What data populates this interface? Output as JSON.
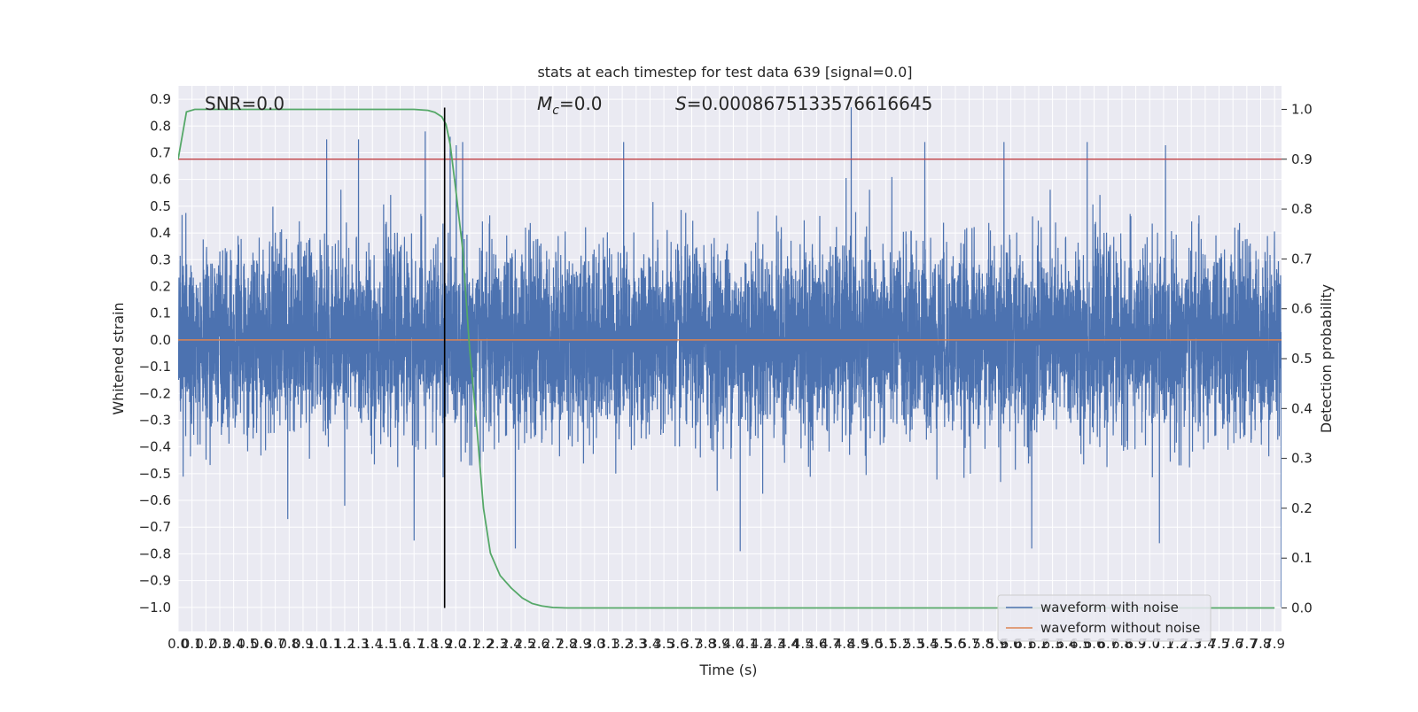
{
  "chart_data": {
    "type": "line",
    "title": "stats at each timestep for test data 639 [signal=0.0]",
    "xlabel": "Time (s)",
    "ylabel": "Whitened strain",
    "y2label": "Detection probability",
    "xlim": [
      0.0,
      7.95
    ],
    "ylim": [
      -1.09,
      0.95
    ],
    "y2lim": [
      -0.047,
      1.047
    ],
    "grid": true,
    "legend_position": "lower-right",
    "x_ticks": [
      "0.0",
      "0.1",
      "0.2",
      "0.3",
      "0.4",
      "0.5",
      "0.6",
      "0.7",
      "0.8",
      "0.9",
      "1.0",
      "1.1",
      "1.2",
      "1.3",
      "1.4",
      "1.5",
      "1.6",
      "1.7",
      "1.8",
      "1.9",
      "2.0",
      "2.1",
      "2.2",
      "2.3",
      "2.4",
      "2.5",
      "2.6",
      "2.7",
      "2.8",
      "2.9",
      "3.0",
      "3.1",
      "3.2",
      "3.3",
      "3.4",
      "3.5",
      "3.6",
      "3.7",
      "3.8",
      "3.9",
      "4.0",
      "4.1",
      "4.2",
      "4.3",
      "4.4",
      "4.5",
      "4.6",
      "4.7",
      "4.8",
      "4.9",
      "5.0",
      "5.1",
      "5.2",
      "5.3",
      "5.4",
      "5.5",
      "5.6",
      "5.7",
      "5.8",
      "5.9",
      "6.0",
      "6.1",
      "6.2",
      "6.3",
      "6.4",
      "6.5",
      "6.6",
      "6.7",
      "6.8",
      "6.9",
      "7.0",
      "7.1",
      "7.2",
      "7.3",
      "7.4",
      "7.5",
      "7.6",
      "7.7",
      "7.8",
      "7.9"
    ],
    "y_ticks": [
      "0.9",
      "0.8",
      "0.7",
      "0.6",
      "0.5",
      "0.4",
      "0.3",
      "0.2",
      "0.1",
      "0.0",
      "−0.1",
      "−0.2",
      "−0.3",
      "−0.4",
      "−0.5",
      "−0.6",
      "−0.7",
      "−0.8",
      "−0.9",
      "−1.0"
    ],
    "y2_ticks": [
      "1.0",
      "0.9",
      "0.8",
      "0.7",
      "0.6",
      "0.5",
      "0.4",
      "0.3",
      "0.2",
      "0.1",
      "0.0"
    ],
    "annotations": {
      "snr": "SNR=0.0",
      "mc_symbol": "M",
      "mc_sub": "c",
      "mc_value": "=0.0",
      "s_symbol": "S",
      "s_value": "=0.0008675133576616645"
    },
    "threshold_y2": 0.9,
    "marker_time": 1.92,
    "series": [
      {
        "name": "waveform with noise",
        "axis": "left",
        "color": "#4c72b0",
        "sample_rate_hz": 1024,
        "noise_std": 0.17,
        "peaks": [
          {
            "x": 1.07,
            "y": 0.75
          },
          {
            "x": 1.3,
            "y": 0.75
          },
          {
            "x": 1.78,
            "y": 0.78
          },
          {
            "x": 1.96,
            "y": 0.76
          },
          {
            "x": 3.21,
            "y": 0.74
          },
          {
            "x": 4.85,
            "y": 0.87
          },
          {
            "x": 5.38,
            "y": 0.74
          },
          {
            "x": 5.95,
            "y": 0.74
          },
          {
            "x": 6.55,
            "y": 0.74
          },
          {
            "x": 2.05,
            "y": 0.74
          },
          {
            "x": 1.2,
            "y": -0.62
          },
          {
            "x": 2.43,
            "y": -0.78
          },
          {
            "x": 4.05,
            "y": -0.79
          },
          {
            "x": 6.15,
            "y": -0.78
          },
          {
            "x": 7.07,
            "y": -0.76
          },
          {
            "x": 0.79,
            "y": -0.67
          },
          {
            "x": 1.7,
            "y": -0.75
          },
          {
            "x": 7.95,
            "y": -1.0
          }
        ]
      },
      {
        "name": "waveform without noise",
        "axis": "left",
        "color": "#dd8452",
        "x": [
          0.0,
          7.95
        ],
        "y": [
          0.0,
          0.0
        ]
      },
      {
        "name": "",
        "axis": "right",
        "color": "#55a868",
        "x": [
          0.0,
          0.06,
          0.12,
          0.3,
          0.6,
          1.0,
          1.4,
          1.7,
          1.8,
          1.85,
          1.9,
          1.93,
          1.96,
          2.0,
          2.05,
          2.1,
          2.15,
          2.2,
          2.25,
          2.32,
          2.4,
          2.48,
          2.55,
          2.62,
          2.7,
          2.8,
          3.0,
          3.5,
          4.0,
          5.0,
          6.0,
          7.0,
          7.9
        ],
        "y": [
          0.9,
          0.995,
          1.0,
          1.0,
          1.0,
          1.0,
          1.0,
          1.0,
          0.998,
          0.994,
          0.985,
          0.97,
          0.93,
          0.84,
          0.72,
          0.52,
          0.37,
          0.2,
          0.11,
          0.065,
          0.04,
          0.02,
          0.009,
          0.004,
          0.001,
          0.0,
          0.0,
          0.0,
          0.0,
          0.0,
          0.0,
          0.0,
          0.0
        ]
      }
    ]
  }
}
